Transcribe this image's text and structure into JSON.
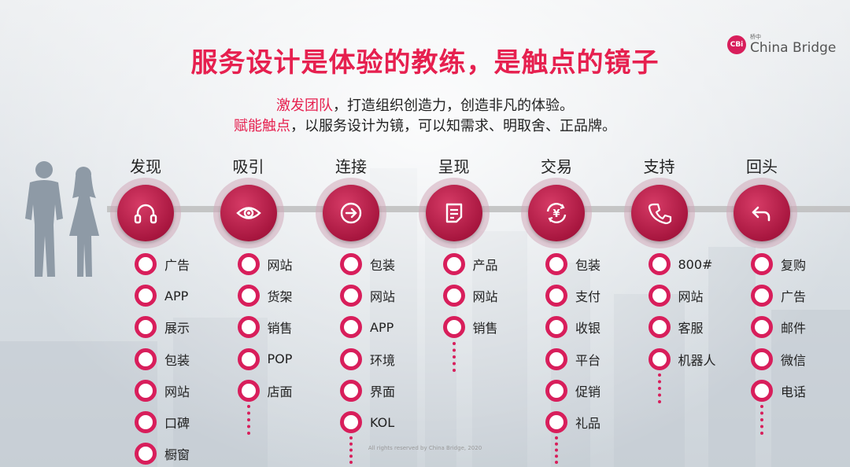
{
  "title": "服务设计是体验的教练，是触点的镜子",
  "logo": {
    "badge": "CBi",
    "small": "桥中",
    "name": "China Bridge"
  },
  "subtitle": {
    "line1": {
      "highlight": "激发团队",
      "rest": "，打造组织创造力，创造非凡的体验。"
    },
    "line2": {
      "highlight": "赋能触点",
      "rest": "，以服务设计为镜，可以知需求、明取舍、正品牌。"
    }
  },
  "stages": [
    {
      "label": "发现",
      "icon": "headphones-icon",
      "items": [
        "广告",
        "APP",
        "展示",
        "包装",
        "网站",
        "口碑",
        "橱窗"
      ],
      "more": false
    },
    {
      "label": "吸引",
      "icon": "eye-icon",
      "items": [
        "网站",
        "货架",
        "销售",
        "POP",
        "店面"
      ],
      "more": true
    },
    {
      "label": "连接",
      "icon": "arrow-right-circle-icon",
      "items": [
        "包装",
        "网站",
        "APP",
        "环境",
        "界面",
        "KOL"
      ],
      "more": true
    },
    {
      "label": "呈现",
      "icon": "document-icon",
      "items": [
        "产品",
        "网站",
        "销售"
      ],
      "more": true
    },
    {
      "label": "交易",
      "icon": "yen-refresh-icon",
      "items": [
        "包装",
        "支付",
        "收银",
        "平台",
        "促销",
        "礼品"
      ],
      "more": true
    },
    {
      "label": "支持",
      "icon": "phone-icon",
      "items": [
        "800#",
        "网站",
        "客服",
        "机器人"
      ],
      "more": true
    },
    {
      "label": "回头",
      "icon": "return-arrow-icon",
      "items": [
        "复购",
        "广告",
        "邮件",
        "微信",
        "电话"
      ],
      "more": true
    }
  ],
  "footer": "All rights reserved by China Bridge, 2020",
  "colors": {
    "accent": "#e6204f",
    "circle": "#a8163f",
    "dot_ring": "#d81e5b"
  }
}
